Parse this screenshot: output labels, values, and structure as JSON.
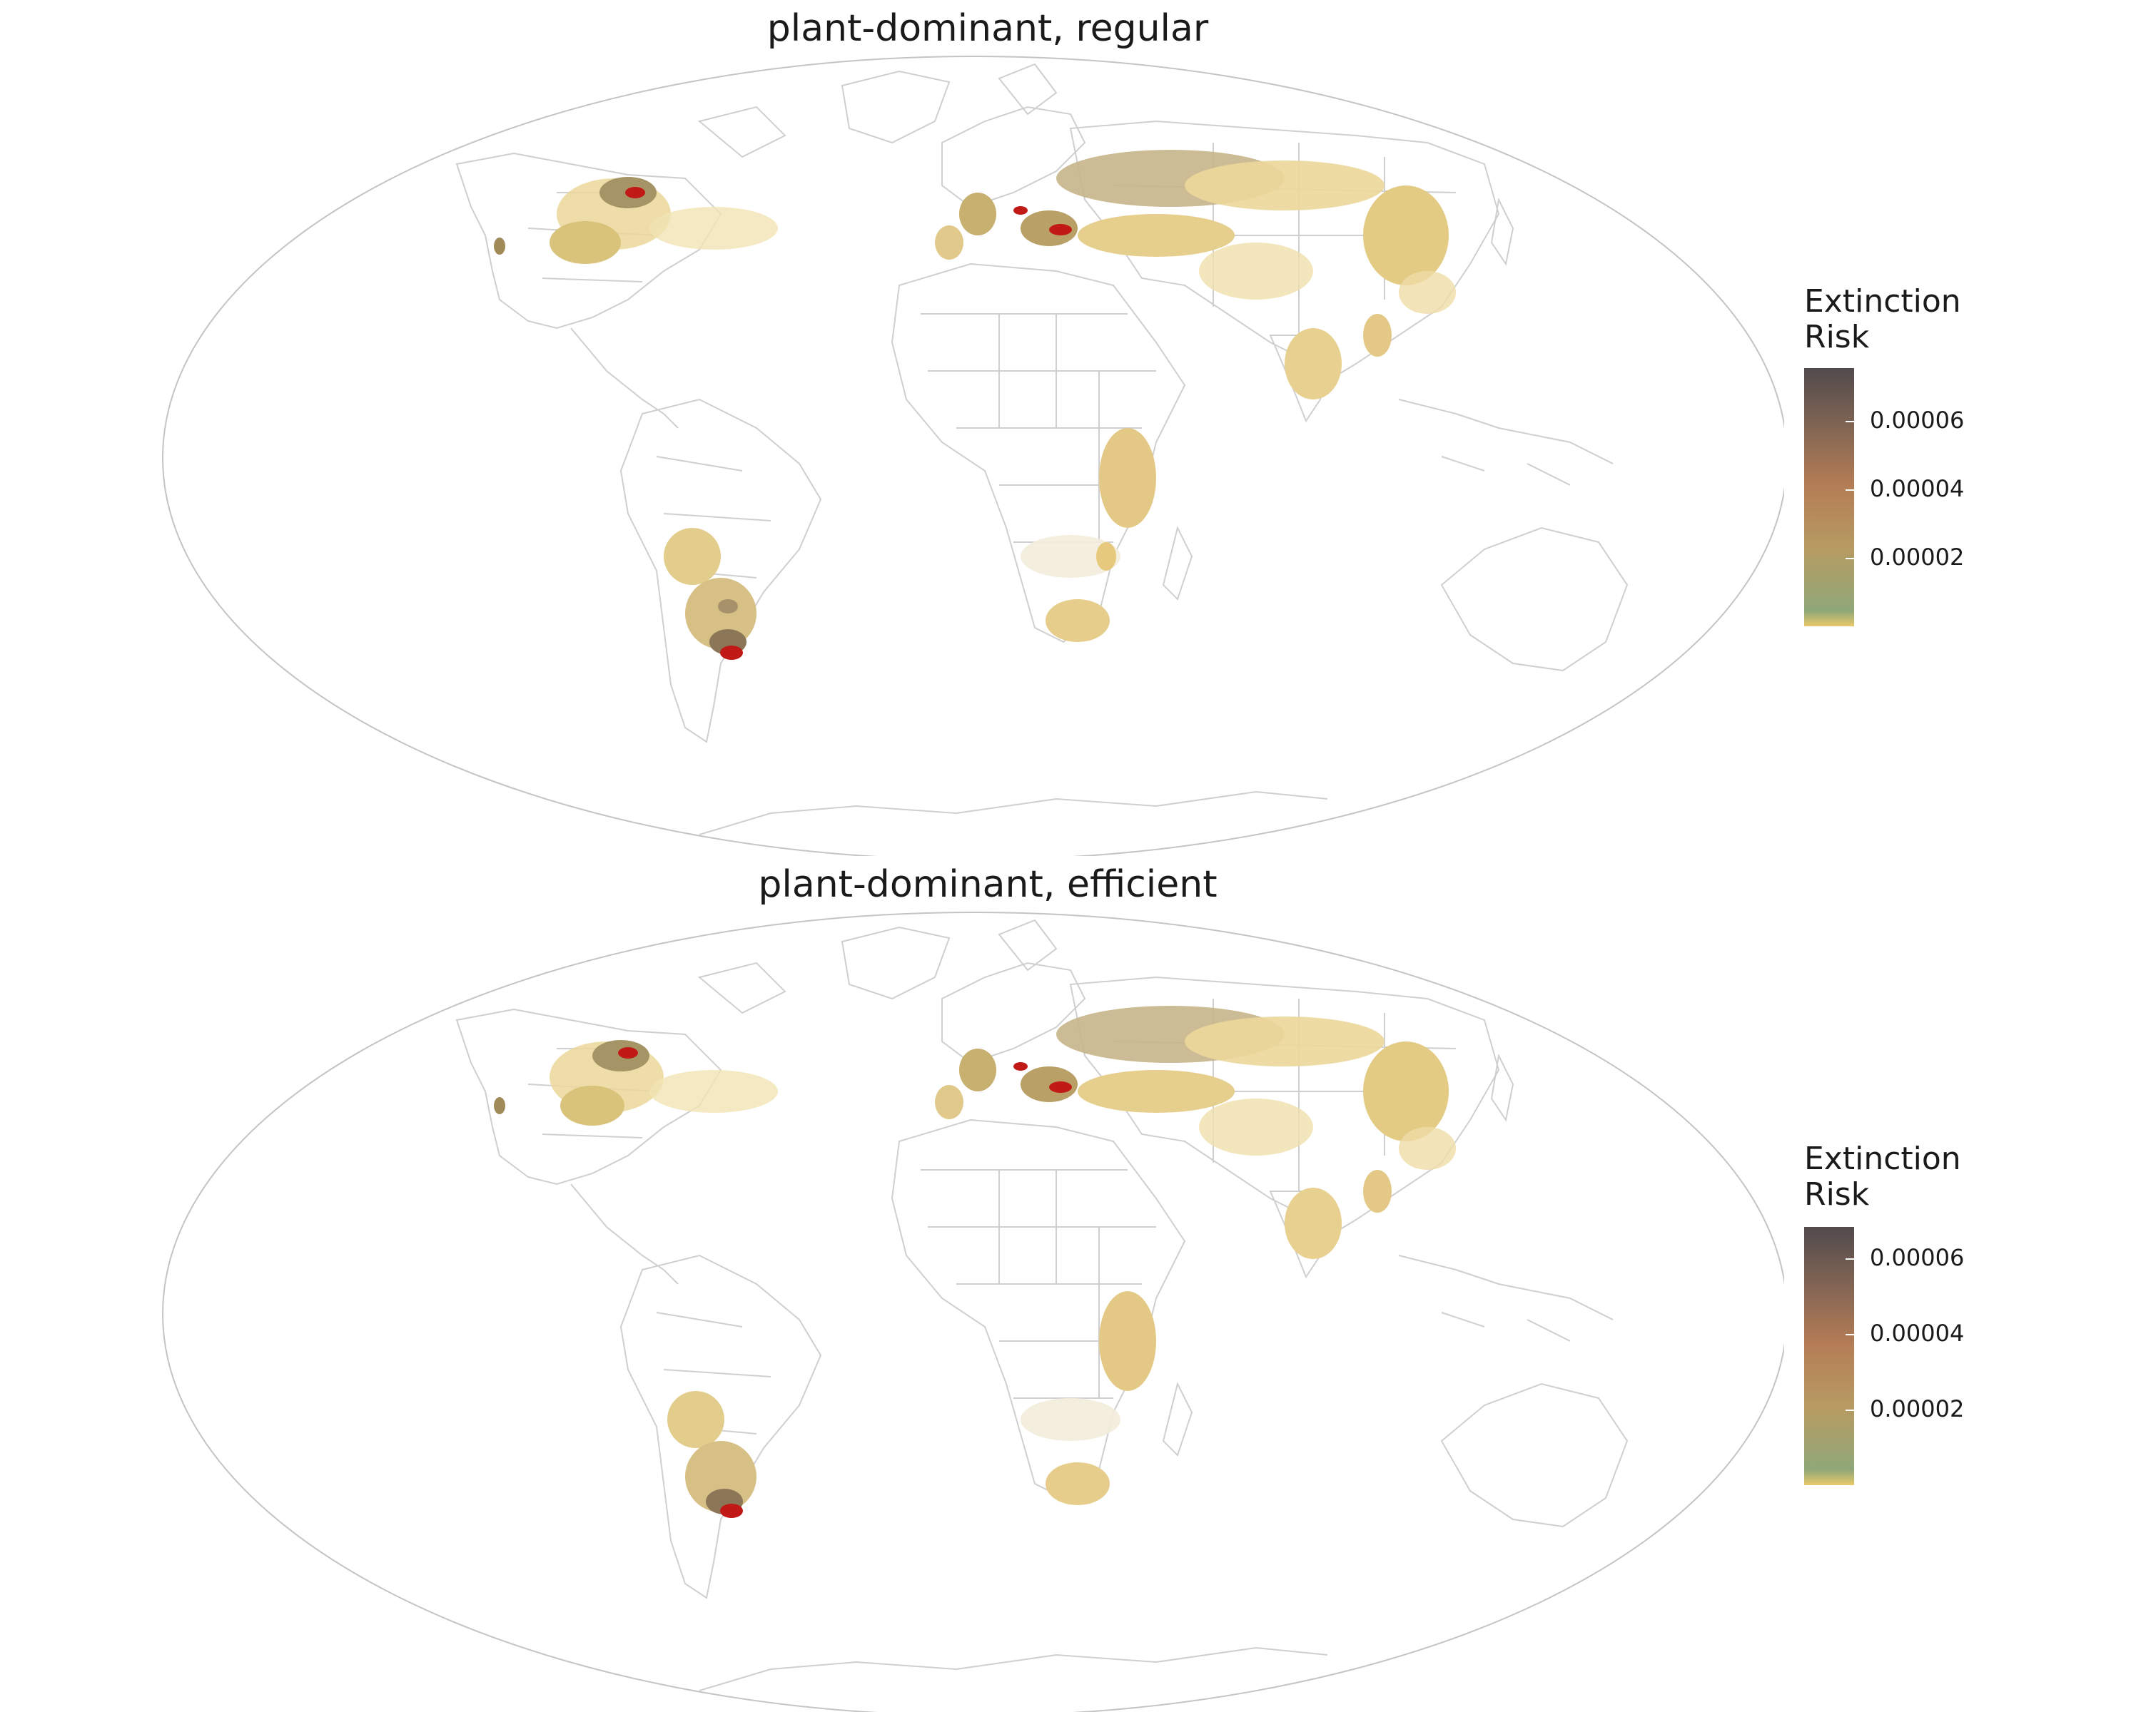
{
  "panels": [
    {
      "title": "plant-dominant, regular",
      "legend": {
        "title_line1": "Extinction",
        "title_line2": "Risk",
        "ticks": [
          "0.00006",
          "0.00004",
          "0.00002"
        ],
        "tick_values": [
          6e-05,
          4e-05,
          2e-05
        ],
        "range": [
          0,
          7.5e-05
        ]
      }
    },
    {
      "title": "plant-dominant, efficient",
      "legend": {
        "title_line1": "Extinction",
        "title_line2": "Risk",
        "ticks": [
          "0.00006",
          "0.00004",
          "0.00002"
        ],
        "tick_values": [
          6e-05,
          4e-05,
          2e-05
        ],
        "range": [
          0,
          6.8e-05
        ]
      }
    }
  ],
  "colors": {
    "colorbar_stops": [
      "#e9c96a",
      "#8fa778",
      "#b79b62",
      "#b47c55",
      "#7b6253",
      "#524a4c"
    ],
    "high_risk": "#c11a16",
    "low_risk": "#ecd79a",
    "country_border": "#c9c9c9"
  }
}
